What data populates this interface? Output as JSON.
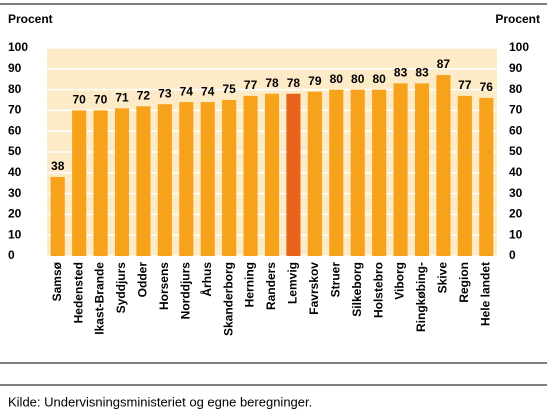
{
  "chart_data": {
    "type": "bar",
    "y_label": "Procent",
    "y2_label": "Procent",
    "categories": [
      "Samsø",
      "Hedensted",
      "Ikast-Brande",
      "Syddjurs",
      "Odder",
      "Horsens",
      "Norddjurs",
      "Århus",
      "Skanderborg",
      "Herning",
      "Randers",
      "Lemvig",
      "Favrskov",
      "Struer",
      "Silkeborg",
      "Holstebro",
      "Viborg",
      "Ringkøbing-",
      "Skive",
      "Region",
      "Hele landet"
    ],
    "values": [
      38,
      70,
      70,
      71,
      72,
      73,
      74,
      74,
      75,
      77,
      78,
      78,
      79,
      80,
      80,
      80,
      83,
      83,
      87,
      77,
      76
    ],
    "colors": [
      "#f7a21b",
      "#f7a21b",
      "#f7a21b",
      "#f7a21b",
      "#f7a21b",
      "#f7a21b",
      "#f7a21b",
      "#f7a21b",
      "#f7a21b",
      "#f7a21b",
      "#f7a21b",
      "#e8641b",
      "#f7a21b",
      "#f7a21b",
      "#f7a21b",
      "#f7a21b",
      "#f7a21b",
      "#f7a21b",
      "#f7a21b",
      "#f7a21b",
      "#f7a21b"
    ],
    "ylim": [
      0,
      100
    ],
    "yticks": [
      0,
      10,
      20,
      30,
      40,
      50,
      60,
      70,
      80,
      90,
      100
    ],
    "y2lim": [
      0,
      100
    ],
    "y2ticks": [
      0,
      10,
      20,
      30,
      40,
      50,
      60,
      70,
      80,
      90,
      100
    ],
    "grid": true,
    "source": "Kilde: Undervisningsministeriet og egne beregninger."
  }
}
